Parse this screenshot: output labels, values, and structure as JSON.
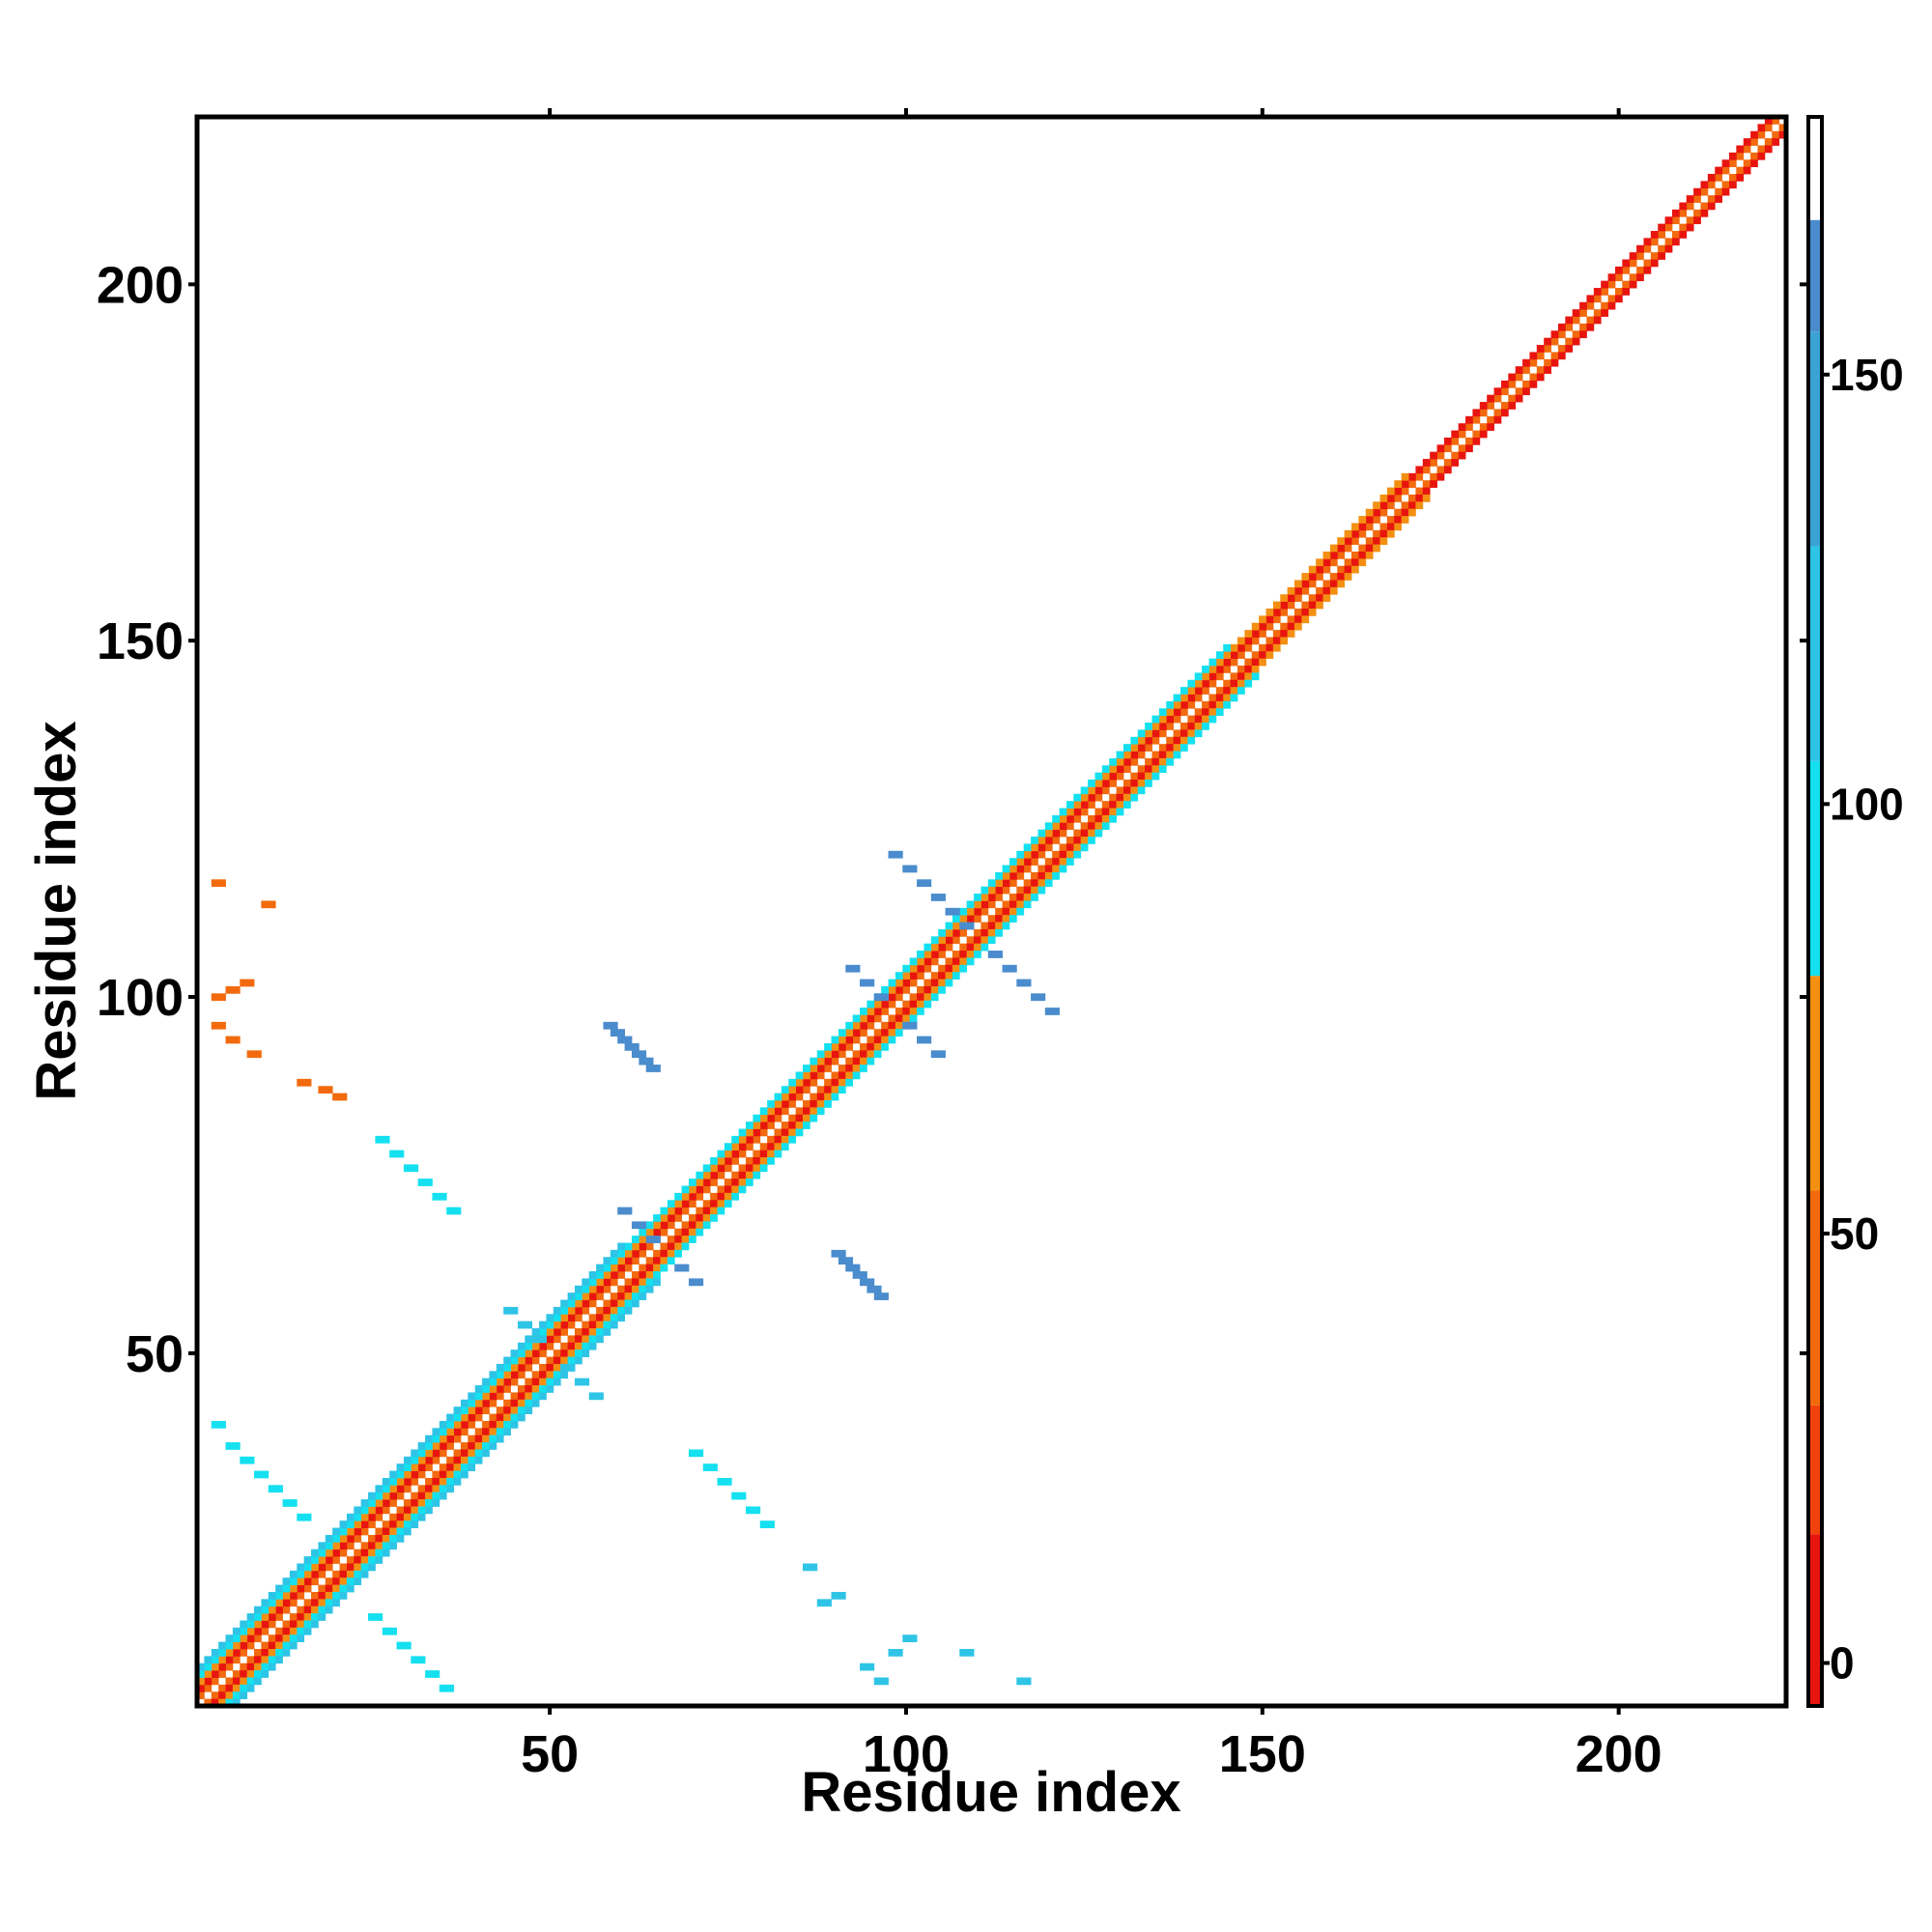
{
  "chart_data": {
    "type": "heatmap",
    "title": "",
    "xlabel": "Residue index",
    "ylabel": "Residue index",
    "xlim": [
      1,
      223
    ],
    "ylim": [
      1,
      223
    ],
    "x_ticks": [
      50,
      100,
      150,
      200
    ],
    "y_ticks": [
      50,
      100,
      150,
      200
    ],
    "colorbar": {
      "range": [
        -5,
        180
      ],
      "ticks": [
        0,
        50,
        100,
        150
      ],
      "bins": [
        {
          "from": -5,
          "to": 15,
          "color": "#e8150f"
        },
        {
          "from": 15,
          "to": 30,
          "color": "#f2420c"
        },
        {
          "from": 30,
          "to": 55,
          "color": "#f26a0d"
        },
        {
          "from": 55,
          "to": 80,
          "color": "#f39012"
        },
        {
          "from": 80,
          "to": 105,
          "color": "#15e0f0"
        },
        {
          "from": 105,
          "to": 130,
          "color": "#2ec4e6"
        },
        {
          "from": 130,
          "to": 155,
          "color": "#3aa3d6"
        },
        {
          "from": 155,
          "to": 168,
          "color": "#4a8ccd"
        },
        {
          "from": 168,
          "to": 180,
          "color": "#ffffff"
        }
      ]
    },
    "diagonal_bands": [
      {
        "offset": 0,
        "color": "#ffffff",
        "from": 1,
        "to": 223
      },
      {
        "offset": 1,
        "color": "#f26a0d",
        "from": 1,
        "to": 223
      },
      {
        "offset": 2,
        "color": "#e8150f",
        "from": 1,
        "to": 223
      },
      {
        "offset": 3,
        "color": "#f39012",
        "from": 1,
        "to": 170
      },
      {
        "offset": 4,
        "color": "#15e0f0",
        "from": 1,
        "to": 145
      },
      {
        "offset": 5,
        "color": "#2ec4e6",
        "from": 1,
        "to": 60
      }
    ],
    "off_diagonal_features": [
      {
        "name": "strand-pair-1",
        "cells": [
          [
            58,
            96
          ],
          [
            59,
            95
          ],
          [
            60,
            94
          ],
          [
            61,
            93
          ],
          [
            62,
            92
          ],
          [
            63,
            91
          ],
          [
            64,
            90
          ]
        ],
        "color": "#4a8ccd"
      },
      {
        "name": "strand-pair-2",
        "cells": [
          [
            90,
            64
          ],
          [
            91,
            63
          ],
          [
            92,
            62
          ],
          [
            93,
            61
          ],
          [
            94,
            60
          ],
          [
            95,
            59
          ],
          [
            96,
            58
          ]
        ],
        "color": "#4a8ccd"
      },
      {
        "name": "crossing-1",
        "cells": [
          [
            98,
            120
          ],
          [
            100,
            118
          ],
          [
            102,
            116
          ],
          [
            104,
            114
          ],
          [
            106,
            112
          ],
          [
            108,
            110
          ],
          [
            112,
            106
          ],
          [
            114,
            104
          ],
          [
            116,
            102
          ],
          [
            118,
            100
          ],
          [
            120,
            98
          ]
        ],
        "color": "#4a8ccd"
      },
      {
        "name": "crossing-2",
        "cells": [
          [
            92,
            104
          ],
          [
            94,
            102
          ],
          [
            96,
            100
          ],
          [
            100,
            96
          ],
          [
            102,
            94
          ],
          [
            104,
            92
          ]
        ],
        "color": "#4a8ccd"
      },
      {
        "name": "crossing-3",
        "cells": [
          [
            60,
            70
          ],
          [
            62,
            68
          ],
          [
            64,
            66
          ],
          [
            68,
            62
          ],
          [
            70,
            60
          ]
        ],
        "color": "#4a8ccd"
      },
      {
        "name": "crossing-4",
        "cells": [
          [
            44,
            56
          ],
          [
            46,
            54
          ],
          [
            48,
            52
          ],
          [
            52,
            48
          ],
          [
            54,
            46
          ],
          [
            56,
            44
          ]
        ],
        "color": "#2ec4e6"
      },
      {
        "name": "hairpin-contacts-a",
        "cells": [
          [
            3,
            40
          ],
          [
            5,
            37
          ],
          [
            7,
            35
          ],
          [
            9,
            33
          ],
          [
            11,
            31
          ],
          [
            13,
            29
          ],
          [
            15,
            27
          ]
        ],
        "color": "#15e0f0"
      },
      {
        "name": "hairpin-contacts-b",
        "cells": [
          [
            25,
            13
          ],
          [
            27,
            11
          ],
          [
            29,
            9
          ],
          [
            31,
            7
          ],
          [
            33,
            5
          ],
          [
            35,
            3
          ]
        ],
        "color": "#15e0f0"
      },
      {
        "name": "mid-contacts-a",
        "cells": [
          [
            26,
            80
          ],
          [
            28,
            78
          ],
          [
            30,
            76
          ],
          [
            32,
            74
          ],
          [
            34,
            72
          ],
          [
            36,
            70
          ]
        ],
        "color": "#15e0f0"
      },
      {
        "name": "mid-contacts-b",
        "cells": [
          [
            70,
            36
          ],
          [
            72,
            34
          ],
          [
            74,
            32
          ],
          [
            76,
            30
          ],
          [
            78,
            28
          ],
          [
            80,
            26
          ]
        ],
        "color": "#15e0f0"
      },
      {
        "name": "far-contacts",
        "cells": [
          [
            3,
            100
          ],
          [
            5,
            101
          ],
          [
            7,
            102
          ],
          [
            3,
            96
          ],
          [
            5,
            94
          ],
          [
            8,
            92
          ],
          [
            15,
            88
          ],
          [
            18,
            87
          ],
          [
            20,
            86
          ],
          [
            3,
            116
          ],
          [
            10,
            113
          ]
        ],
        "color": "#f26a0d"
      },
      {
        "name": "far-contacts-2",
        "cells": [
          [
            88,
            15
          ],
          [
            90,
            16
          ],
          [
            94,
            6
          ],
          [
            96,
            4
          ],
          [
            98,
            8
          ],
          [
            100,
            10
          ],
          [
            108,
            8
          ],
          [
            116,
            4
          ],
          [
            86,
            20
          ]
        ],
        "color": "#2ec4e6"
      }
    ]
  }
}
